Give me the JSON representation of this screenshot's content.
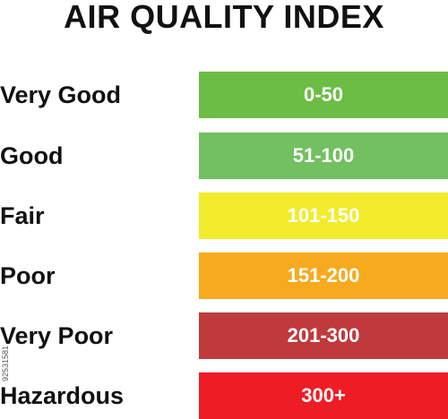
{
  "title": "AIR QUALITY INDEX",
  "levels": [
    {
      "label": "Very Good",
      "range": "0-50",
      "color": "#6cbd45"
    },
    {
      "label": "Good",
      "range": "51-100",
      "color": "#72c05f"
    },
    {
      "label": "Fair",
      "range": "101-150",
      "color": "#f2ec2c"
    },
    {
      "label": "Poor",
      "range": "151-200",
      "color": "#f7aa1e"
    },
    {
      "label": "Very Poor",
      "range": "201-300",
      "color": "#c03a3d"
    },
    {
      "label": "Hazardous",
      "range": "300+",
      "color": "#ee1c25"
    }
  ],
  "side_id": "92531581"
}
